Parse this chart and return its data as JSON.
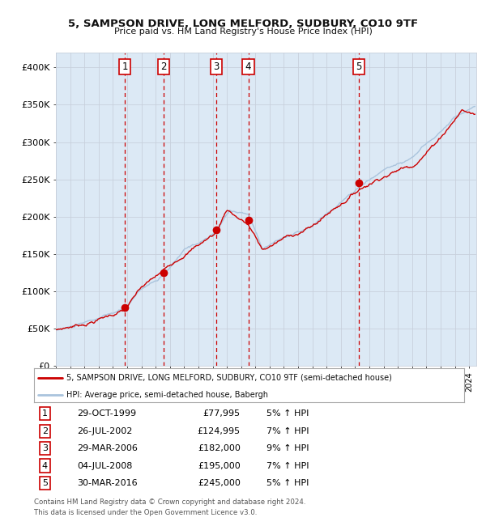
{
  "title": "5, SAMPSON DRIVE, LONG MELFORD, SUDBURY, CO10 9TF",
  "subtitle": "Price paid vs. HM Land Registry's House Price Index (HPI)",
  "transactions": [
    {
      "num": 1,
      "date": "29-OCT-1999",
      "year": 1999.83,
      "price": 77995,
      "pct": "5%"
    },
    {
      "num": 2,
      "date": "26-JUL-2002",
      "year": 2002.56,
      "price": 124995,
      "pct": "7%"
    },
    {
      "num": 3,
      "date": "29-MAR-2006",
      "year": 2006.25,
      "price": 182000,
      "pct": "9%"
    },
    {
      "num": 4,
      "date": "04-JUL-2008",
      "year": 2008.5,
      "price": 195000,
      "pct": "7%"
    },
    {
      "num": 5,
      "date": "30-MAR-2016",
      "year": 2016.25,
      "price": 245000,
      "pct": "5%"
    }
  ],
  "legend_line1": "5, SAMPSON DRIVE, LONG MELFORD, SUDBURY, CO10 9TF (semi-detached house)",
  "legend_line2": "HPI: Average price, semi-detached house, Babergh",
  "footer1": "Contains HM Land Registry data © Crown copyright and database right 2024.",
  "footer2": "This data is licensed under the Open Government Licence v3.0.",
  "hpi_color": "#aac4dd",
  "price_color": "#cc0000",
  "bg_color": "#dce9f5",
  "plot_bg": "#ffffff",
  "grid_color": "#c8d0dc",
  "dashed_color": "#cc0000",
  "ylim": [
    0,
    420000
  ],
  "yticks": [
    0,
    50000,
    100000,
    150000,
    200000,
    250000,
    300000,
    350000,
    400000
  ],
  "ytick_labels": [
    "£0",
    "£50K",
    "£100K",
    "£150K",
    "£200K",
    "£250K",
    "£300K",
    "£350K",
    "£400K"
  ],
  "xlim_start": 1995.0,
  "xlim_end": 2024.5
}
